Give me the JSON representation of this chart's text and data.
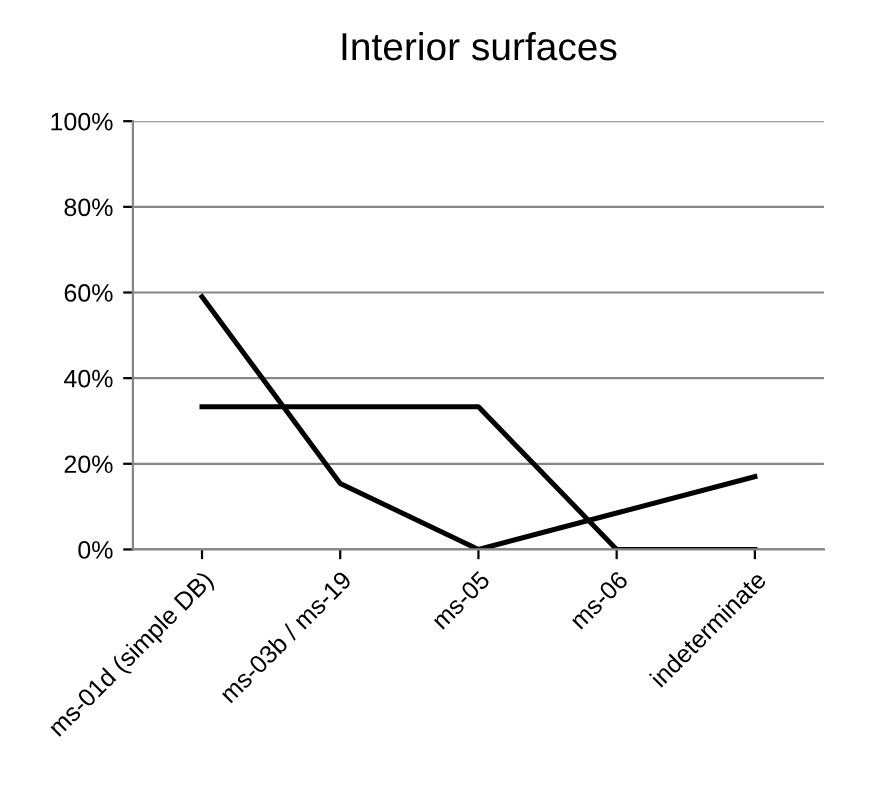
{
  "chart_data": {
    "type": "line",
    "title": "Interior surfaces",
    "categories": [
      "ms-01d (simple DB)",
      "ms-03b / ms-19",
      "ms-05",
      "ms-06",
      "indeterminate"
    ],
    "series": [
      {
        "color": "#000000",
        "values": [
          59,
          15.4,
          0,
          8.5,
          17
        ]
      },
      {
        "color": "#000000",
        "values": [
          33.3,
          33.3,
          33.3,
          0,
          0
        ]
      }
    ],
    "ylim": [
      0,
      100
    ],
    "yticks": [
      {
        "value": 0,
        "label": "0%"
      },
      {
        "value": 20,
        "label": "20%"
      },
      {
        "value": 40,
        "label": "40%"
      },
      {
        "value": 60,
        "label": "60%"
      },
      {
        "value": 80,
        "label": "80%"
      },
      {
        "value": 100,
        "label": "100%"
      }
    ],
    "grid": "y",
    "legend": false,
    "marker": "none",
    "line_style": "solid"
  }
}
